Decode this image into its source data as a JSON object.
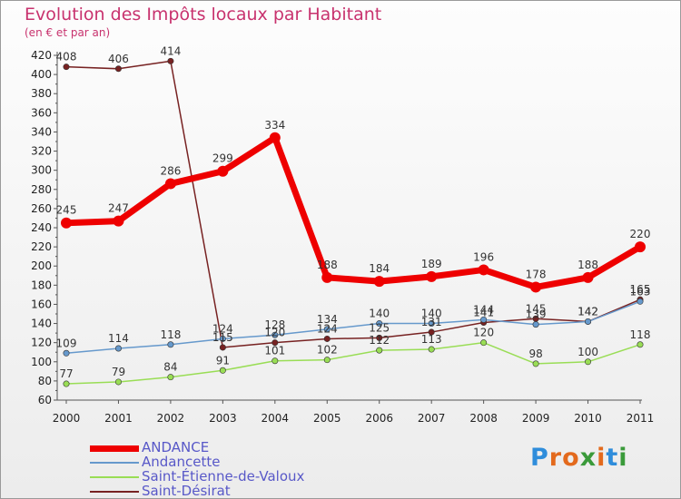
{
  "title": "Evolution des Impôts locaux par Habitant",
  "subtitle": "(en € et par an)",
  "logo": {
    "text": "Proxiti",
    "letter_colors": [
      "#2f8ddb",
      "#e36a1d",
      "#e36a1d",
      "#3a9a3a",
      "#e36a1d",
      "#2f8ddb",
      "#3a9a3a"
    ]
  },
  "chart_data": {
    "type": "line",
    "title": "Evolution des Impôts locaux par Habitant",
    "subtitle": "(en € et par an)",
    "x": [
      "2000",
      "2001",
      "2002",
      "2003",
      "2004",
      "2005",
      "2006",
      "2007",
      "2008",
      "2009",
      "2010",
      "2011"
    ],
    "ylim": [
      60,
      420
    ],
    "yticks": [
      60,
      80,
      100,
      120,
      140,
      160,
      180,
      200,
      220,
      240,
      260,
      280,
      300,
      320,
      340,
      360,
      380,
      400,
      420
    ],
    "grid": false,
    "legend_position": "bottom-left",
    "series": [
      {
        "name": "ANDANCE",
        "color": "#ee0000",
        "values": [
          245,
          247,
          286,
          299,
          334,
          188,
          184,
          189,
          196,
          178,
          188,
          220
        ]
      },
      {
        "name": "Andancette",
        "color": "#6699cc",
        "values": [
          109,
          114,
          118,
          124,
          128,
          134,
          140,
          140,
          144,
          139,
          142,
          163
        ]
      },
      {
        "name": "Saint-Étienne-de-Valoux",
        "color": "#99dd55",
        "values": [
          77,
          79,
          84,
          91,
          101,
          102,
          112,
          113,
          120,
          98,
          100,
          118
        ]
      },
      {
        "name": "Saint-Désirat",
        "color": "#772222",
        "values": [
          408,
          406,
          414,
          115,
          120,
          124,
          125,
          131,
          141,
          145,
          142,
          165
        ]
      }
    ]
  }
}
